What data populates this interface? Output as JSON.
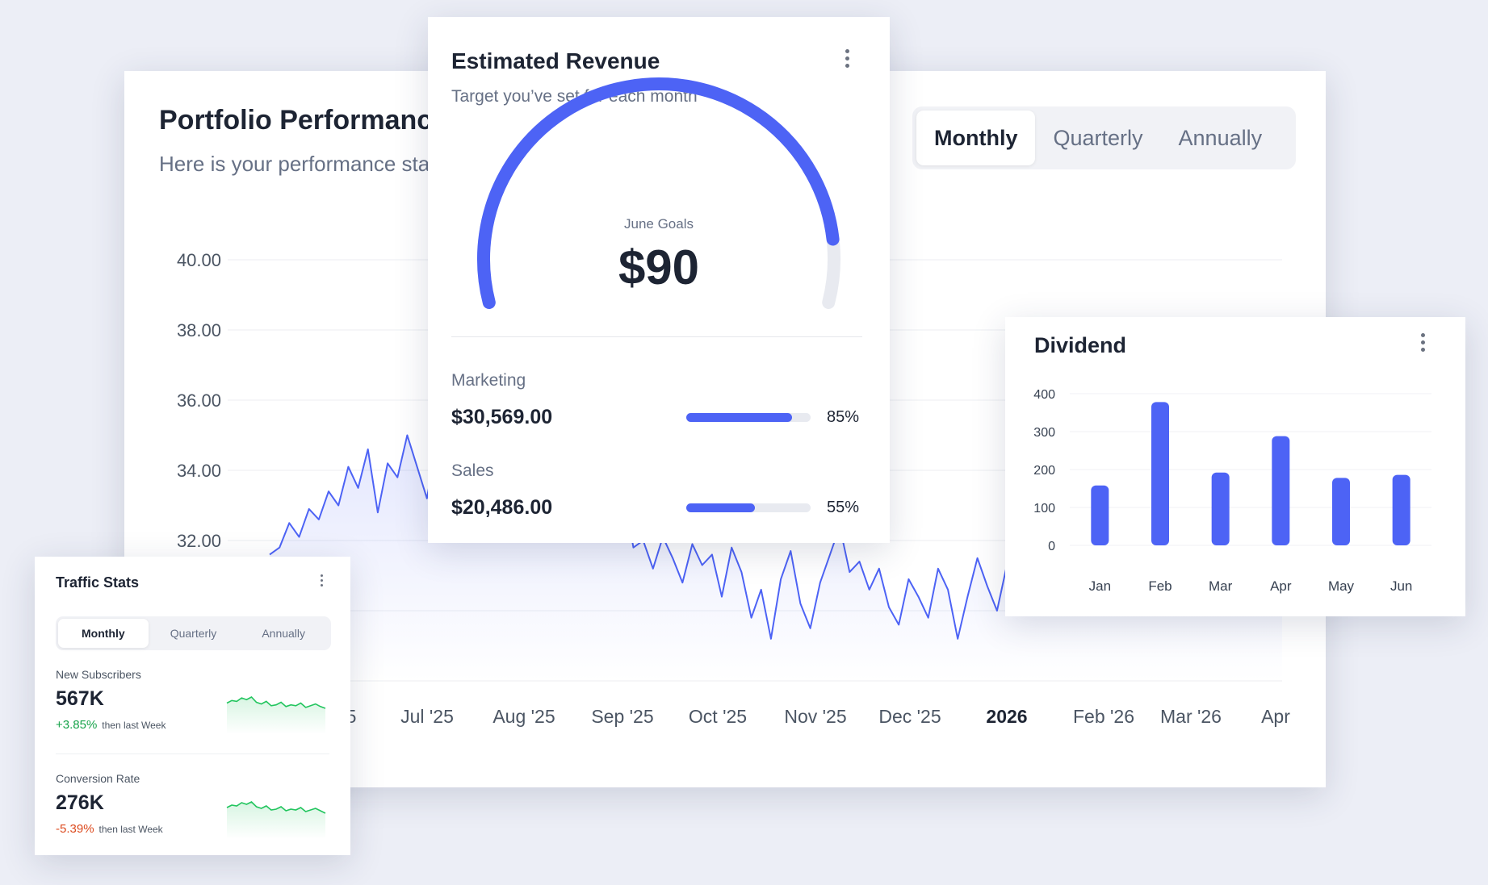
{
  "portfolio": {
    "title": "Portfolio Performance",
    "subtitle": "Here is your performance stats of each month",
    "period_options": [
      "Monthly",
      "Quarterly",
      "Annually"
    ],
    "active_period": "Monthly"
  },
  "revenue": {
    "title": "Estimated Revenue",
    "subtitle": "Target you’ve set for each month",
    "gauge_label": "June Goals",
    "gauge_value": "$90",
    "gauge_fraction": 0.9,
    "rows": [
      {
        "label": "Marketing",
        "amount": "$30,569.00",
        "percent_text": "85%",
        "percent": 85
      },
      {
        "label": "Sales",
        "amount": "$20,486.00",
        "percent_text": "55%",
        "percent": 55
      }
    ]
  },
  "traffic": {
    "title": "Traffic Stats",
    "period_options": [
      "Monthly",
      "Quarterly",
      "Annually"
    ],
    "active_period": "Monthly",
    "stats": [
      {
        "label": "New Subscribers",
        "value": "567K",
        "change": "+3.85%",
        "direction": "up",
        "note": "then last Week"
      },
      {
        "label": "Conversion Rate",
        "value": "276K",
        "change": "-5.39%",
        "direction": "down",
        "note": "then last Week"
      }
    ]
  },
  "colors": {
    "accent": "#4d63f5",
    "positive": "#16a34a",
    "negative": "#dc4a1e",
    "spark": "#22c55e"
  },
  "chart_data": [
    {
      "type": "area",
      "y_ticks": [
        "40.00",
        "38.00",
        "36.00",
        "34.00",
        "32.00"
      ],
      "x_ticks": [
        "5",
        "Jul '25",
        "Aug '25",
        "Sep '25",
        "Oct '25",
        "Nov '25",
        "Dec '25",
        "2026",
        "Feb '26",
        "Mar '26",
        "Apr"
      ],
      "ylim": [
        28,
        40
      ],
      "grid": true,
      "series": [
        {
          "values": [
            31.6,
            31.8,
            32.5,
            32.1,
            32.9,
            32.6,
            33.4,
            33.0,
            34.1,
            33.5,
            34.6,
            32.8,
            34.2,
            33.8,
            35.0,
            34.1,
            33.2,
            34.8,
            35.2,
            34.4,
            34.9,
            33.6,
            33.9,
            34.5,
            34.3,
            33.8,
            34.6,
            34.1,
            33.5,
            34.4,
            34.7,
            33.2,
            32.6,
            33.8,
            33.0,
            32.2,
            33.4,
            31.8,
            32.0,
            31.2,
            32.1,
            31.5,
            30.8,
            31.9,
            31.3,
            31.6,
            30.4,
            31.8,
            31.1,
            29.8,
            30.6,
            29.2,
            30.9,
            31.7,
            30.2,
            29.5,
            30.8,
            31.6,
            32.4,
            31.1,
            31.4,
            30.6,
            31.2,
            30.1,
            29.6,
            30.9,
            30.4,
            29.8,
            31.2,
            30.6,
            29.2,
            30.4,
            31.5,
            30.7,
            30.0,
            31.3,
            31.8,
            32.6,
            32.0,
            33.1,
            33.5,
            33.9,
            34.1,
            33.2,
            33.8,
            33.0,
            32.8,
            31.9,
            31.1,
            30.5,
            30.6,
            31.2,
            32.3,
            31.7,
            32.4,
            31.9,
            33.1,
            32.5,
            33.6,
            34.0,
            33.2,
            34.6,
            33.9,
            33.4
          ]
        }
      ]
    },
    {
      "type": "bar",
      "title": "Dividend",
      "categories": [
        "Jan",
        "Feb",
        "Mar",
        "Apr",
        "May",
        "Jun"
      ],
      "values": [
        158,
        378,
        192,
        288,
        178,
        186
      ],
      "ylim": [
        0,
        400
      ],
      "y_ticks": [
        "400",
        "300",
        "200",
        "100",
        "0"
      ],
      "grid": true
    },
    {
      "type": "line",
      "title": "New Subscribers sparkline",
      "values": [
        3.2,
        3.5,
        3.4,
        3.8,
        3.6,
        3.9,
        3.3,
        3.1,
        3.4,
        2.9,
        3.0,
        3.3,
        2.8,
        3.0,
        2.9,
        3.2,
        2.7,
        2.9,
        3.1,
        2.8,
        2.6
      ]
    },
    {
      "type": "line",
      "title": "Conversion Rate sparkline",
      "values": [
        3.1,
        3.4,
        3.3,
        3.7,
        3.5,
        3.8,
        3.2,
        3.0,
        3.3,
        2.8,
        2.9,
        3.2,
        2.7,
        2.9,
        2.8,
        3.1,
        2.6,
        2.8,
        3.0,
        2.7,
        2.4
      ]
    }
  ]
}
